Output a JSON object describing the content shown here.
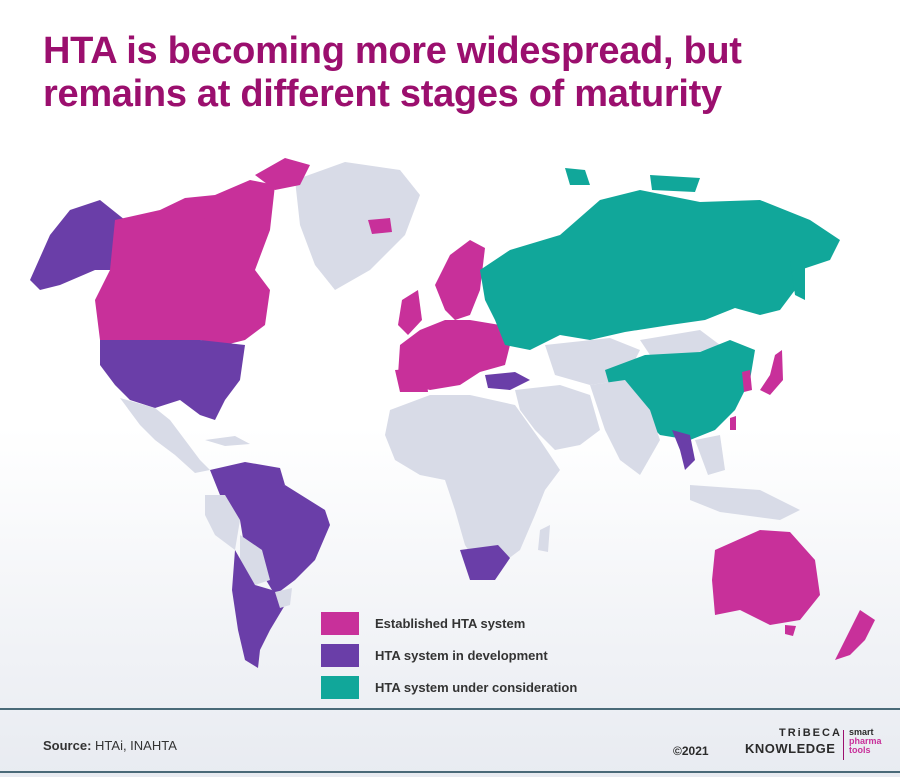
{
  "title": "HTA is becoming more widespread, but remains at different stages of maturity",
  "colors": {
    "established": "#c8309a",
    "development": "#6a3ea8",
    "consideration": "#11a79a",
    "other": "#d8dbe7",
    "title": "#9b0f6e"
  },
  "legend": [
    {
      "label": "Established HTA system",
      "color": "#c8309a"
    },
    {
      "label": "HTA system in development",
      "color": "#6a3ea8"
    },
    {
      "label": "HTA system under consideration",
      "color": "#11a79a"
    }
  ],
  "source": {
    "label": "Source:",
    "text": "HTAi, INAHTA"
  },
  "brand": {
    "copyright": "©2021",
    "top": "TRiBECA",
    "bottom": "KNOWLEDGE",
    "side1": "smart",
    "side2": "pharma",
    "side3": "tools"
  }
}
